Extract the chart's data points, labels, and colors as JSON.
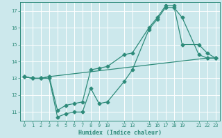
{
  "xlabel": "Humidex (Indice chaleur)",
  "background_color": "#cce8ec",
  "grid_color": "#ffffff",
  "line_color": "#2e8b7a",
  "xlim": [
    -0.5,
    23.5
  ],
  "ylim": [
    10.5,
    17.5
  ],
  "xticks": [
    0,
    1,
    2,
    3,
    4,
    5,
    6,
    7,
    8,
    9,
    10,
    12,
    13,
    15,
    16,
    17,
    18,
    19,
    21,
    22,
    23
  ],
  "yticks": [
    11,
    12,
    13,
    14,
    15,
    16,
    17
  ],
  "line1_x": [
    0,
    1,
    2,
    3,
    4,
    5,
    6,
    7,
    8,
    9,
    10,
    12,
    13,
    15,
    16,
    17,
    18,
    19,
    21,
    22,
    23
  ],
  "line1_y": [
    13.1,
    13.0,
    13.0,
    13.0,
    10.7,
    10.9,
    11.0,
    11.0,
    12.4,
    11.5,
    11.6,
    12.8,
    13.5,
    15.9,
    16.5,
    17.2,
    17.2,
    16.6,
    14.4,
    14.2,
    14.2
  ],
  "line2_x": [
    0,
    1,
    2,
    3,
    4,
    5,
    6,
    7,
    8,
    9,
    10,
    12,
    13,
    15,
    16,
    17,
    18,
    19,
    21,
    22,
    23
  ],
  "line2_y": [
    13.1,
    13.0,
    13.0,
    13.1,
    11.1,
    11.4,
    11.5,
    11.6,
    13.5,
    13.6,
    13.7,
    14.4,
    14.5,
    16.0,
    16.6,
    17.3,
    17.3,
    15.0,
    15.0,
    14.5,
    14.2
  ],
  "line3_x": [
    0,
    1,
    2,
    3,
    22,
    23
  ],
  "line3_y": [
    13.1,
    13.0,
    13.0,
    13.1,
    14.2,
    14.2
  ],
  "marker_size": 2.5,
  "line_width": 0.9,
  "tick_fontsize": 5.0,
  "xlabel_fontsize": 6.0
}
